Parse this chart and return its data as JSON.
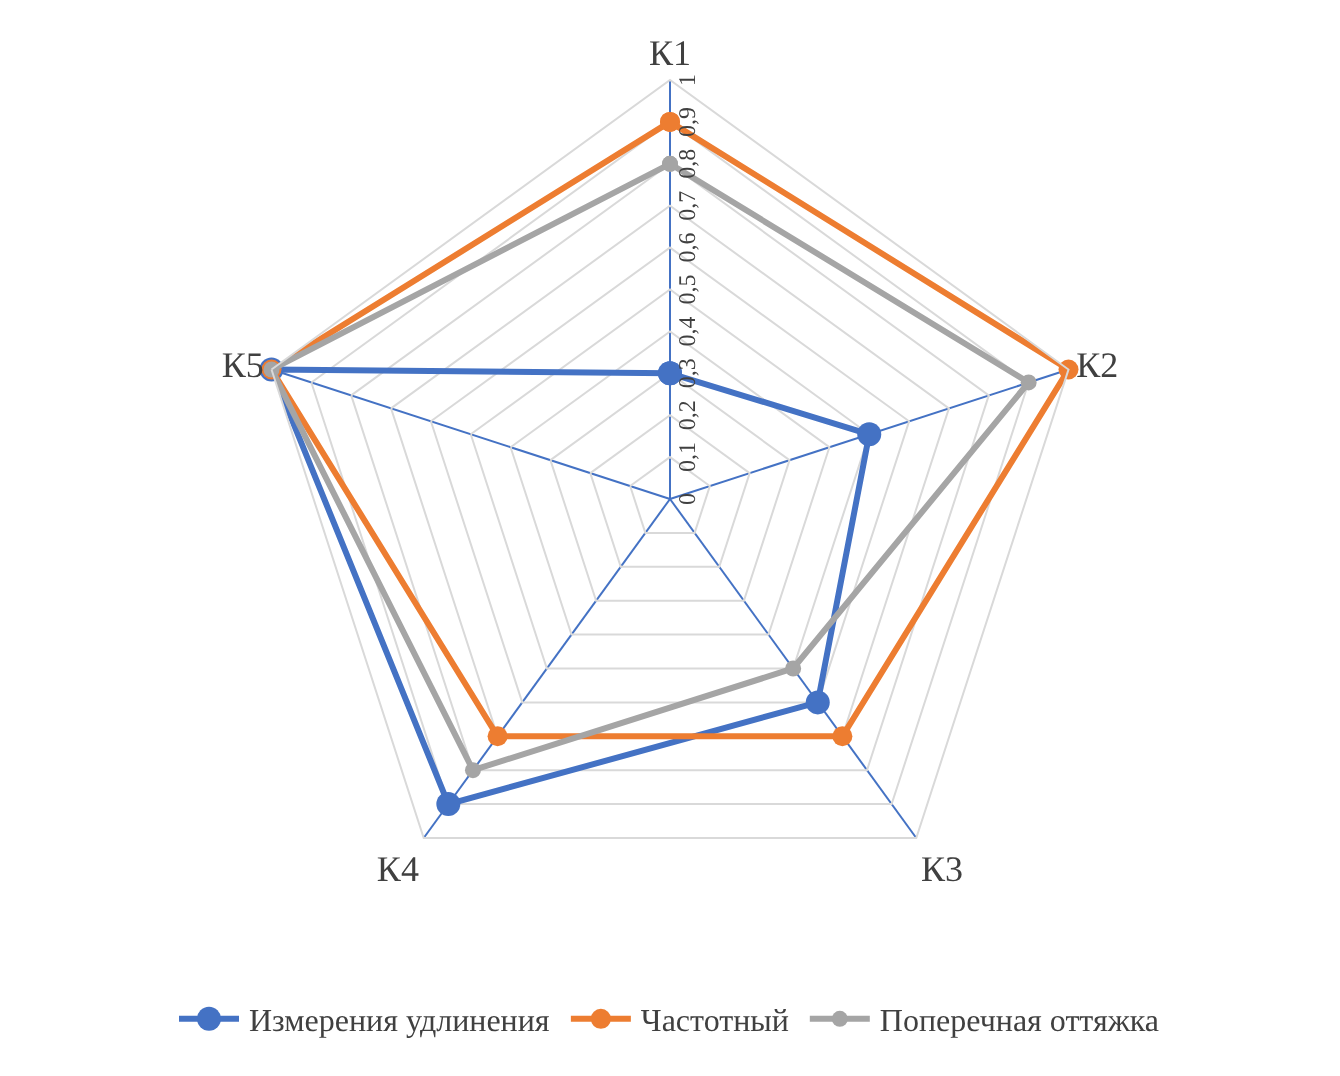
{
  "chart_data": {
    "type": "radar",
    "categories": [
      "К1",
      "К2",
      "К3",
      "К4",
      "К5"
    ],
    "series": [
      {
        "name": "Измерения удлинения",
        "color": "#4472c4",
        "values": [
          0.3,
          0.5,
          0.6,
          0.9,
          1
        ]
      },
      {
        "name": "Частотный",
        "color": "#ed7d31",
        "values": [
          0.9,
          1,
          0.7,
          0.7,
          1
        ]
      },
      {
        "name": "Поперечная оттяжка",
        "color": "#a5a5a5",
        "values": [
          0.8,
          0.9,
          0.5,
          0.8,
          1
        ]
      }
    ],
    "ylim": [
      0,
      1
    ],
    "yticks": [
      0,
      {
        "value": 0.1,
        "label": "0,1"
      },
      {
        "value": 0.2,
        "label": "0,2"
      },
      {
        "value": 0.3,
        "label": "0,3"
      },
      {
        "value": 0.4,
        "label": "0,4"
      },
      {
        "value": 0.5,
        "label": "0,5"
      },
      {
        "value": 0.6,
        "label": "0,6"
      },
      {
        "value": 0.7,
        "label": "0,7"
      },
      {
        "value": 0.8,
        "label": "0,8"
      },
      {
        "value": 0.9,
        "label": "0,9"
      },
      1
    ],
    "grid": true,
    "legend": "bottom",
    "marker": "circle",
    "line_style": "solid"
  }
}
